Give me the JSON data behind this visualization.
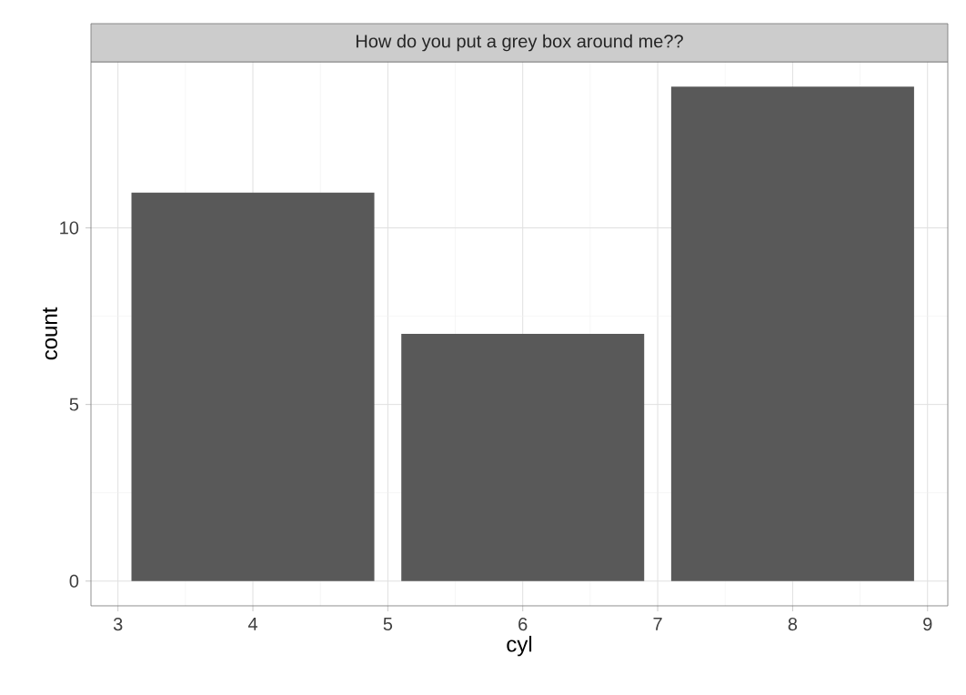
{
  "chart_data": {
    "type": "bar",
    "title": "How do you put a grey box around me??",
    "xlabel": "cyl",
    "ylabel": "count",
    "x": [
      4,
      6,
      8
    ],
    "values": [
      11,
      7,
      14
    ],
    "color": "#595959",
    "xlim": [
      2.8,
      9.15
    ],
    "ylim": [
      -0.7,
      14.7
    ],
    "xticks": [
      3,
      4,
      5,
      6,
      7,
      8,
      9
    ],
    "yticks": [
      0,
      5,
      10
    ],
    "grid": true
  }
}
